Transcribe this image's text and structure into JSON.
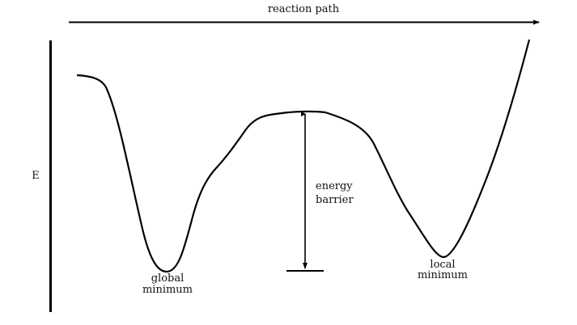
{
  "diagram": {
    "top_axis_label": "reaction path",
    "side_axis_label": "E",
    "barrier_label_line1": "energy",
    "barrier_label_line2": "barrier",
    "global_min_line1": "global",
    "global_min_line2": "minimum",
    "local_min_line1": "local",
    "local_min_line2": "minimum",
    "line_color": "#000000"
  }
}
